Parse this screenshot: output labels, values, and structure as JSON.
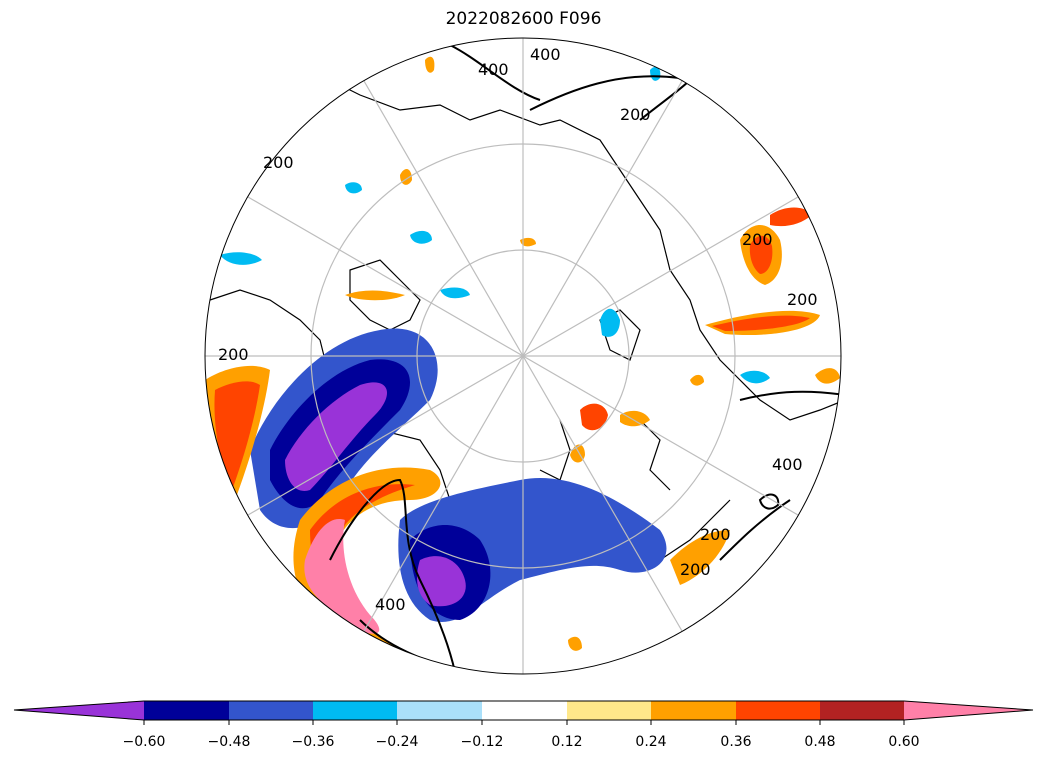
{
  "title": "2022082600 F096",
  "contour_labels": [
    "400",
    "400",
    "200",
    "200",
    "200",
    "200",
    "200",
    "200",
    "400",
    "400",
    "200"
  ],
  "colorbar": {
    "colors": [
      "#9933d8",
      "#000099",
      "#3355cc",
      "#00bbf2",
      "#aae0fa",
      "#ffffff",
      "#ffe88a",
      "#ffa000",
      "#ff4400",
      "#b22222",
      "#ff80a8"
    ],
    "ticks": [
      "−0.60",
      "−0.48",
      "−0.36",
      "−0.24",
      "−0.12",
      "0.12",
      "0.24",
      "0.36",
      "0.48",
      "0.60"
    ]
  }
}
